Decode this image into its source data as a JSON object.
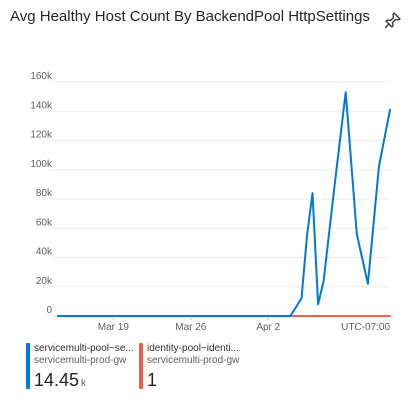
{
  "title": "Avg Healthy Host Count By BackendPool HttpSettings",
  "pin_icon": "pin-icon",
  "timezone": "UTC-07:00",
  "chart_data": {
    "type": "line",
    "title": "Avg Healthy Host Count By BackendPool HttpSettings",
    "x_ticks": [
      "Mar 19",
      "Mar 26",
      "Apr 2"
    ],
    "y_ticks": [
      "0",
      "20k",
      "40k",
      "60k",
      "80k",
      "100k",
      "120k",
      "140k",
      "160k"
    ],
    "ylim": [
      0,
      160000
    ],
    "xlim": [
      "Mar 14",
      "Apr 13"
    ],
    "grid": true,
    "x": [
      "Mar 14",
      "Apr 1",
      "Apr 4",
      "Apr 5",
      "Apr 5.5",
      "Apr 6",
      "Apr 6.5",
      "Apr 7",
      "Apr 8",
      "Apr 9",
      "Apr 10",
      "Apr 11",
      "Apr 12",
      "Apr 13"
    ],
    "series": [
      {
        "name": "servicemulti-pool~se...",
        "color": "#0078d4",
        "values": [
          0,
          0,
          0,
          12000,
          55000,
          84000,
          8000,
          24000,
          90000,
          153000,
          56000,
          22000,
          102000,
          141000
        ]
      },
      {
        "name": "identity-pool~identi...",
        "color": "#e8624b",
        "values": [
          1,
          1,
          1,
          1,
          1,
          1,
          1,
          1,
          1,
          1,
          1,
          1,
          1,
          1
        ]
      }
    ]
  },
  "legend": [
    {
      "name": "servicemulti-pool~se...",
      "sub": "servicemulti-prod-gw",
      "value": "14.45",
      "unit": "k",
      "color": "#0078d4"
    },
    {
      "name": "identity-pool~identi...",
      "sub": "servicemulti-prod-gw",
      "value": "1",
      "unit": "",
      "color": "#e8624b"
    }
  ]
}
